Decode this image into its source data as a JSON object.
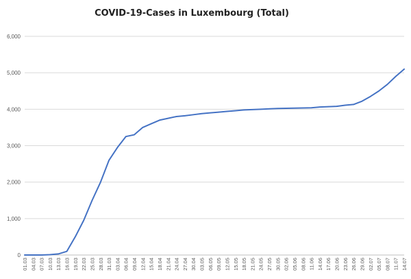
{
  "chart_data": {
    "type": "line",
    "title": "COVID-19-Cases in Luxembourg (Total)",
    "xlabel": "",
    "ylabel": "",
    "ylim": [
      0,
      6000
    ],
    "yticks": [
      0,
      1000,
      2000,
      3000,
      4000,
      5000,
      6000
    ],
    "ytick_labels": [
      "0",
      "1,000",
      "2,000",
      "3,000",
      "4,000",
      "5,000",
      "6,000"
    ],
    "grid": true,
    "legend": "none",
    "line_color": "#4472c4",
    "xtick_labels": [
      "01.03",
      "04.03",
      "07.03",
      "10.03",
      "13.03",
      "16.03",
      "19.03",
      "22.03",
      "25.03",
      "28.03",
      "31.03",
      "03.04",
      "06.04",
      "09.04",
      "12.04",
      "15.04",
      "18.04",
      "21.04",
      "24.04",
      "27.04",
      "30.04",
      "03.05",
      "06.05",
      "09.05",
      "12.05",
      "15.05",
      "18.05",
      "21.05",
      "24.05",
      "27.05",
      "30.05",
      "02.06",
      "05.06",
      "08.06",
      "11.06",
      "14.06",
      "17.06",
      "20.06",
      "23.06",
      "26.06",
      "29.06",
      "02.07",
      "05.07",
      "08.07",
      "11.07",
      "14.07"
    ],
    "x": [
      "01.03",
      "04.03",
      "07.03",
      "10.03",
      "13.03",
      "16.03",
      "19.03",
      "22.03",
      "25.03",
      "28.03",
      "31.03",
      "03.04",
      "06.04",
      "09.04",
      "12.04",
      "15.04",
      "18.04",
      "21.04",
      "24.04",
      "27.04",
      "30.04",
      "03.05",
      "06.05",
      "09.05",
      "12.05",
      "15.05",
      "18.05",
      "21.05",
      "24.05",
      "27.05",
      "30.05",
      "02.06",
      "05.06",
      "08.06",
      "11.06",
      "14.06",
      "17.06",
      "20.06",
      "23.06",
      "26.06",
      "29.06",
      "02.07",
      "05.07",
      "08.07",
      "11.07",
      "14.07"
    ],
    "values": [
      0,
      0,
      0,
      10,
      30,
      100,
      500,
      950,
      1500,
      2000,
      2600,
      2950,
      3250,
      3300,
      3500,
      3600,
      3700,
      3750,
      3800,
      3820,
      3850,
      3880,
      3900,
      3920,
      3940,
      3960,
      3980,
      3990,
      4000,
      4010,
      4020,
      4025,
      4030,
      4035,
      4040,
      4060,
      4070,
      4080,
      4110,
      4130,
      4220,
      4350,
      4500,
      4680,
      4900,
      5100
    ]
  }
}
